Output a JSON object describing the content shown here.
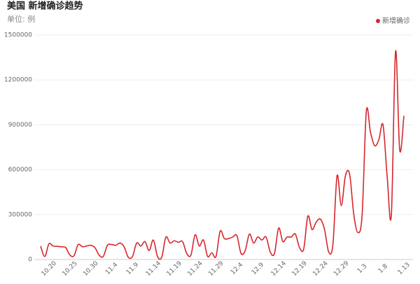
{
  "chart_data": {
    "type": "line",
    "title": "美国 新增确诊趋势",
    "subtitle": "单位: 例",
    "categories": [
      null,
      null,
      "10.20",
      null,
      null,
      null,
      null,
      "10.25",
      null,
      null,
      null,
      null,
      "10.30",
      null,
      null,
      null,
      null,
      "11.4",
      null,
      null,
      null,
      null,
      "11.9",
      null,
      null,
      null,
      null,
      "11.14",
      null,
      null,
      null,
      null,
      "11.19",
      null,
      null,
      null,
      null,
      "11.24",
      null,
      null,
      null,
      null,
      "11.29",
      null,
      null,
      null,
      null,
      "12.4",
      null,
      null,
      null,
      null,
      "12.9",
      null,
      null,
      null,
      null,
      "12.14",
      null,
      null,
      null,
      null,
      "12.19",
      null,
      null,
      null,
      null,
      "12.24",
      null,
      null,
      null,
      null,
      "12.29",
      null,
      null,
      null,
      null,
      "1.3",
      null,
      null,
      null,
      null,
      "1.8",
      null,
      null,
      null,
      null,
      "1.13"
    ],
    "series": [
      {
        "name": "新增确诊",
        "color": "#d7262b",
        "values": [
          90000,
          20000,
          105000,
          90000,
          88000,
          85000,
          80000,
          30000,
          25000,
          100000,
          85000,
          90000,
          95000,
          80000,
          30000,
          20000,
          95000,
          100000,
          95000,
          110000,
          85000,
          15000,
          20000,
          110000,
          90000,
          120000,
          60000,
          130000,
          20000,
          15000,
          150000,
          110000,
          125000,
          115000,
          120000,
          40000,
          30000,
          165000,
          90000,
          130000,
          20000,
          45000,
          20000,
          190000,
          140000,
          140000,
          150000,
          160000,
          40000,
          60000,
          170000,
          110000,
          150000,
          130000,
          150000,
          50000,
          40000,
          210000,
          120000,
          150000,
          150000,
          170000,
          80000,
          70000,
          290000,
          200000,
          250000,
          270000,
          200000,
          50000,
          100000,
          560000,
          360000,
          560000,
          570000,
          300000,
          180000,
          300000,
          990000,
          850000,
          760000,
          800000,
          900000,
          550000,
          300000,
          1390000,
          730000,
          960000
        ]
      }
    ],
    "ylim": [
      0,
      1500000
    ],
    "yticks": [
      0,
      300000,
      600000,
      900000,
      1200000,
      1500000
    ],
    "grid": true,
    "legend": "top-right"
  }
}
